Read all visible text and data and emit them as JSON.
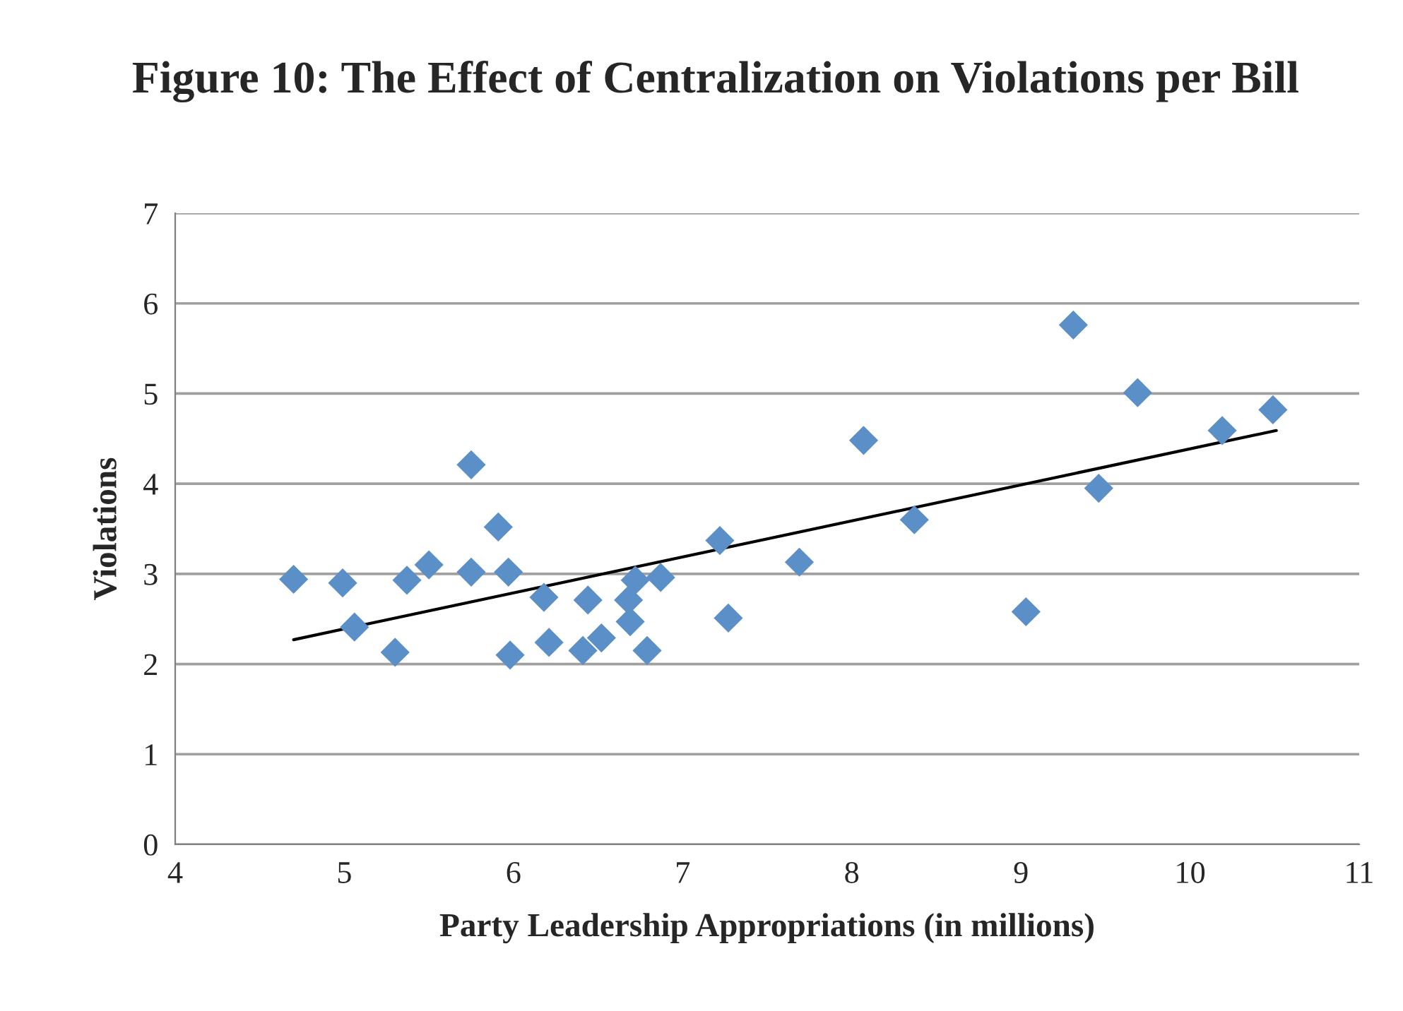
{
  "chart_data": {
    "type": "scatter",
    "title": "Figure 10: The Effect of Centralization on Violations per Bill",
    "xlabel": "Party Leadership Appropriations (in millions)",
    "ylabel": "Violations",
    "xlim": [
      4,
      11
    ],
    "xticks": [
      4,
      5,
      6,
      7,
      8,
      9,
      10,
      11
    ],
    "ylim": [
      0,
      7
    ],
    "yticks": [
      0,
      1,
      2,
      3,
      4,
      5,
      6,
      7
    ],
    "grid": "y",
    "series": [
      {
        "marker": "diamond",
        "color": "#5b8fc7",
        "x": [
          4.7,
          4.99,
          5.06,
          5.3,
          5.37,
          5.5,
          5.75,
          5.75,
          5.91,
          5.97,
          5.98,
          6.18,
          6.21,
          6.41,
          6.44,
          6.52,
          6.68,
          6.69,
          6.72,
          6.79,
          6.87,
          7.22,
          7.27,
          7.69,
          8.07,
          8.37,
          9.03,
          9.31,
          9.46,
          9.69,
          10.19,
          10.49
        ],
        "values": [
          2.94,
          2.9,
          2.41,
          2.13,
          2.93,
          3.1,
          4.21,
          3.02,
          3.52,
          3.02,
          2.1,
          2.74,
          2.24,
          2.15,
          2.71,
          2.29,
          2.71,
          2.47,
          2.93,
          2.15,
          2.96,
          3.37,
          2.51,
          3.13,
          4.48,
          3.6,
          2.58,
          5.76,
          3.95,
          5.01,
          4.59,
          4.82
        ]
      },
      {
        "type": "line",
        "color": "#000000",
        "x": [
          4.7,
          10.51
        ],
        "values": [
          2.27,
          4.59
        ]
      }
    ]
  }
}
